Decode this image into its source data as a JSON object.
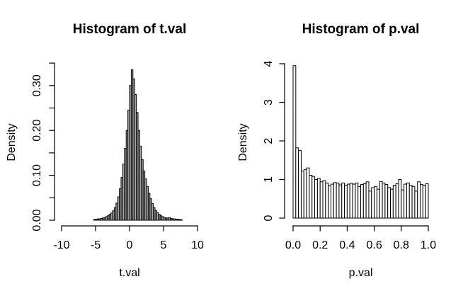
{
  "background_color": "#ffffff",
  "text_color": "#000000",
  "axis_color": "#000000",
  "chart_data": [
    {
      "type": "bar",
      "subtype": "histogram",
      "title": "Histogram of t.val",
      "xlabel": "t.val",
      "ylabel": "Density",
      "bar_fill": "#a8a8a8",
      "bar_stroke": "#000000",
      "bin_start": -5.25,
      "bin_width": 0.25,
      "densities": [
        0.002,
        0.002,
        0.003,
        0.003,
        0.004,
        0.005,
        0.006,
        0.008,
        0.01,
        0.013,
        0.016,
        0.021,
        0.028,
        0.038,
        0.052,
        0.07,
        0.095,
        0.125,
        0.16,
        0.2,
        0.245,
        0.3,
        0.335,
        0.315,
        0.28,
        0.24,
        0.2,
        0.165,
        0.135,
        0.11,
        0.092,
        0.075,
        0.06,
        0.048,
        0.037,
        0.028,
        0.022,
        0.017,
        0.013,
        0.01,
        0.008,
        0.006,
        0.005,
        0.005,
        0.006,
        0.004,
        0.003,
        0.003,
        0.002,
        0.002,
        0.002,
        0.001
      ],
      "xlim": [
        -10,
        10
      ],
      "ylim": [
        0,
        0.35
      ],
      "x_ticks": [
        -10,
        -5,
        0,
        5,
        10
      ],
      "x_tick_labels": [
        "-10",
        "-5",
        "0",
        "5",
        "10"
      ],
      "y_ticks": [
        0,
        0.05,
        0.1,
        0.15,
        0.2,
        0.25,
        0.3,
        0.35
      ],
      "y_tick_labels": [
        "0.00",
        "",
        "0.10",
        "",
        "0.20",
        "",
        "0.30",
        ""
      ],
      "grid": false,
      "legend": false
    },
    {
      "type": "bar",
      "subtype": "histogram",
      "title": "Histogram of p.val",
      "xlabel": "p.val",
      "ylabel": "Density",
      "bar_fill": "#ffffff",
      "bar_stroke": "#000000",
      "bin_start": 0,
      "bin_width": 0.02,
      "densities": [
        3.95,
        1.82,
        1.75,
        1.22,
        1.26,
        1.3,
        1.11,
        1.08,
        1.0,
        1.03,
        0.94,
        0.97,
        0.91,
        0.84,
        0.88,
        0.92,
        0.91,
        0.86,
        0.91,
        0.85,
        0.88,
        0.9,
        0.88,
        0.91,
        0.82,
        0.87,
        0.89,
        0.94,
        0.7,
        0.79,
        0.82,
        0.75,
        0.95,
        0.91,
        0.87,
        0.79,
        0.75,
        0.85,
        0.89,
        1.0,
        0.73,
        0.88,
        0.91,
        0.85,
        0.82,
        0.7,
        0.94,
        0.87,
        0.85,
        0.89
      ],
      "xlim": [
        0,
        1
      ],
      "ylim": [
        0,
        4
      ],
      "x_ticks": [
        0,
        0.2,
        0.4,
        0.6,
        0.8,
        1.0
      ],
      "x_tick_labels": [
        "0.0",
        "0.2",
        "0.4",
        "0.6",
        "0.8",
        "1.0"
      ],
      "y_ticks": [
        0,
        1,
        2,
        3,
        4
      ],
      "y_tick_labels": [
        "0",
        "1",
        "2",
        "3",
        "4"
      ],
      "grid": false,
      "legend": false
    }
  ]
}
